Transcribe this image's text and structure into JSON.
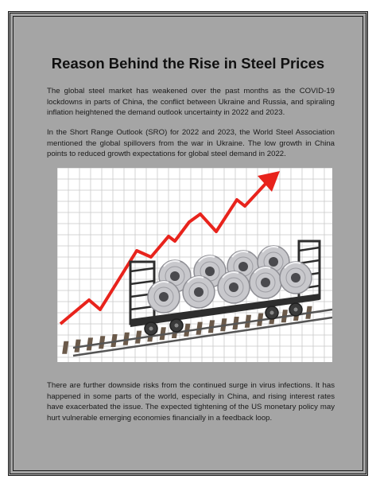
{
  "document": {
    "title": "Reason Behind the Rise in Steel Prices",
    "paragraphs": [
      "The global steel market has weakened over the past months as the COVID-19 lockdowns in parts of China, the conflict between Ukraine and Russia, and spiraling inflation heightened the demand outlook uncertainty in 2022 and 2023.",
      "In the Short Range Outlook (SRO) for 2022 and 2023, the World Steel Association mentioned the global spillovers from the war in Ukraine. The low growth in China points to reduced growth expectations for global steel demand in 2022.",
      "There are further downside risks from the continued surge in virus infections. It has happened in some parts of the world, especially in China, and rising interest rates have exacerbated the issue. The expected tightening of the US monetary policy may hurt vulnerable emerging economies financially in a feedback loop."
    ]
  },
  "illustration": {
    "subject": "rising red trend arrow over grid with railway wagon carrying steel coils",
    "arrow_color": "#e8231c",
    "grid_color": "#c9c9c9",
    "wagon_color": "#2d2d2d",
    "coil_color": "#c8c8cc"
  }
}
